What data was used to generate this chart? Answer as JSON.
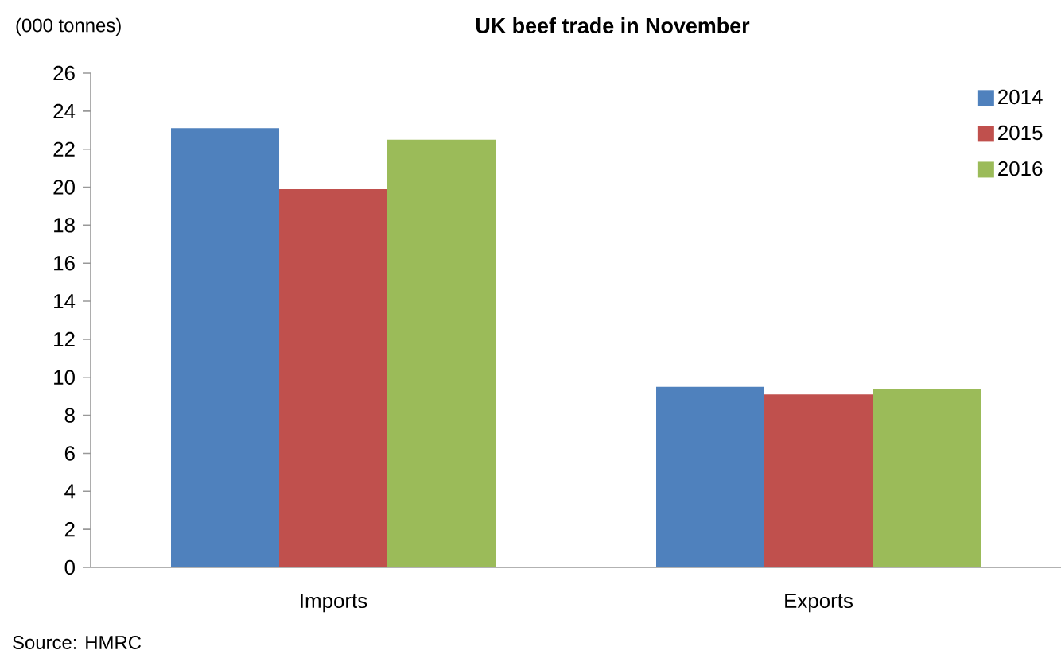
{
  "chart_data": {
    "type": "bar",
    "title": "UK beef trade in November",
    "ylabel": "(000 tonnes)",
    "categories": [
      "Imports",
      "Exports"
    ],
    "series": [
      {
        "name": "2014",
        "color": "#4f81bd",
        "values": [
          23.1,
          9.5
        ]
      },
      {
        "name": "2015",
        "color": "#c0504d",
        "values": [
          19.9,
          9.1
        ]
      },
      {
        "name": "2016",
        "color": "#9bbb59",
        "values": [
          22.5,
          9.4
        ]
      }
    ],
    "ylim": [
      0,
      26
    ],
    "yticks": [
      0,
      2,
      4,
      6,
      8,
      10,
      12,
      14,
      16,
      18,
      20,
      22,
      24,
      26
    ],
    "grid": false,
    "legend": "top right",
    "annotations": [
      "Source: HMRC"
    ]
  }
}
